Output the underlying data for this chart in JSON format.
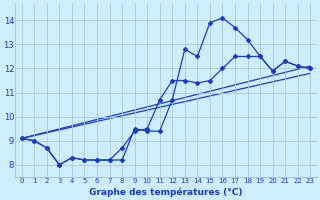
{
  "xlabel": "Graphe des températures (°C)",
  "bg_color": "#cceeff",
  "grid_color": "#aacccc",
  "line_color": "#1a3acc",
  "xlim": [
    -0.5,
    23.5
  ],
  "ylim": [
    7.5,
    14.7
  ],
  "yticks": [
    8,
    9,
    10,
    11,
    12,
    13,
    14
  ],
  "xticks": [
    0,
    1,
    2,
    3,
    4,
    5,
    6,
    7,
    8,
    9,
    10,
    11,
    12,
    13,
    14,
    15,
    16,
    17,
    18,
    19,
    20,
    21,
    22,
    23
  ],
  "series1_x": [
    0,
    1,
    2,
    3,
    4,
    5,
    6,
    7,
    8,
    9,
    10,
    11,
    12,
    13,
    14,
    15,
    16,
    17,
    18,
    19,
    20,
    21,
    22,
    23
  ],
  "series1_y": [
    9.1,
    9.0,
    8.7,
    8.0,
    8.3,
    8.2,
    8.2,
    8.2,
    8.2,
    9.5,
    9.4,
    9.4,
    10.7,
    12.8,
    12.5,
    13.9,
    14.1,
    13.7,
    13.2,
    12.5,
    11.9,
    12.3,
    12.1,
    12.0
  ],
  "series2_x": [
    0,
    1,
    2,
    3,
    4,
    5,
    6,
    7,
    8,
    9,
    10,
    11,
    12,
    13,
    14,
    15,
    16,
    17,
    18,
    19,
    20,
    21,
    22,
    23
  ],
  "series2_y": [
    9.1,
    9.0,
    8.7,
    8.0,
    8.3,
    8.2,
    8.2,
    8.2,
    8.7,
    9.4,
    9.5,
    10.7,
    11.5,
    11.5,
    11.4,
    11.5,
    12.0,
    12.5,
    12.5,
    12.5,
    11.9,
    12.3,
    12.1,
    12.0
  ],
  "line1_x": [
    0,
    23
  ],
  "line1_y": [
    9.1,
    12.1
  ],
  "line2_x": [
    0,
    23
  ],
  "line2_y": [
    9.1,
    11.8
  ]
}
